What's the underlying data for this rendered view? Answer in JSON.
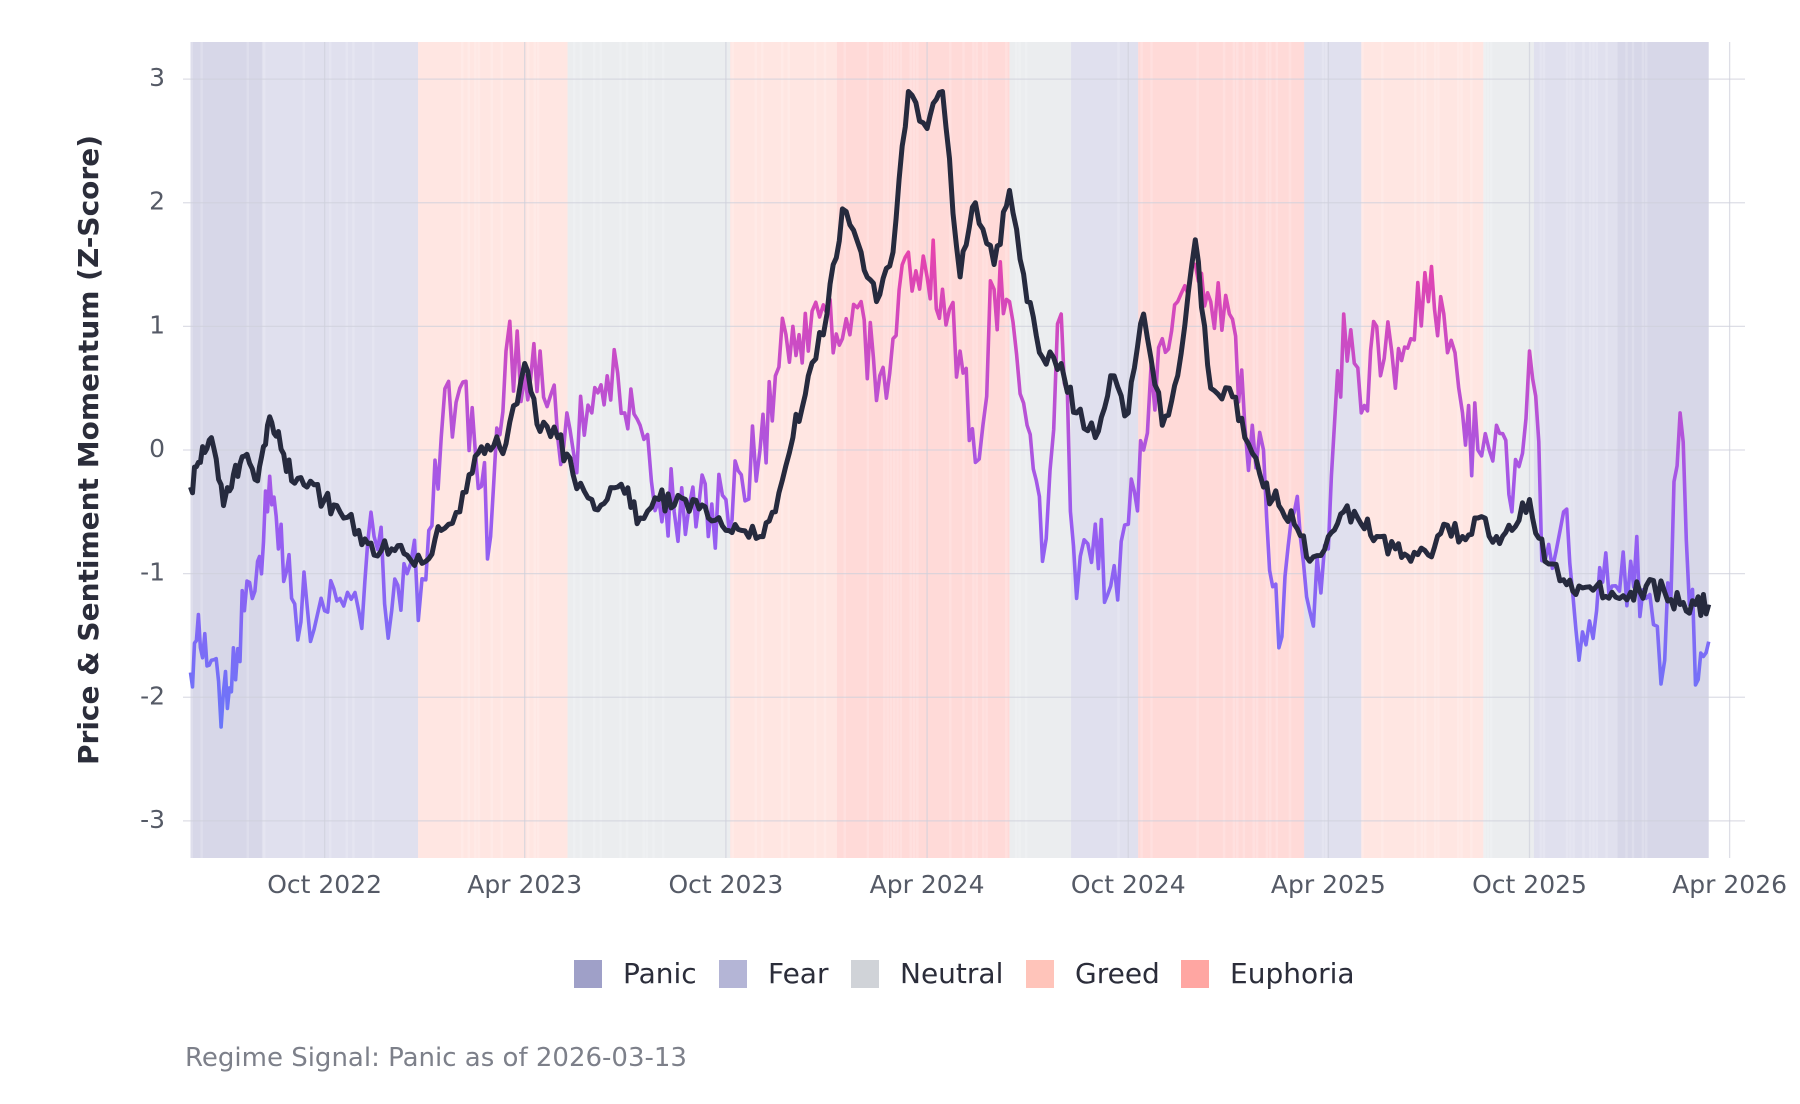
{
  "chart_data": {
    "type": "line",
    "ylabel": "Price & Sentiment Momentum (Z-Score)",
    "xlabel": "",
    "title": "",
    "ylim": [
      -3.3,
      3.3
    ],
    "xlim": [
      "2022-05-27",
      "2026-04-15"
    ],
    "data_range": [
      "2022-06-01",
      "2026-03-13"
    ],
    "yticks": [
      -3,
      -2,
      -1,
      0,
      1,
      2,
      3
    ],
    "ytick_labels": [
      "-3",
      "-2",
      "-1",
      "0",
      "1",
      "2",
      "3"
    ],
    "xticks": [
      "2022-10-01",
      "2023-04-01",
      "2023-10-01",
      "2024-04-01",
      "2024-10-01",
      "2025-04-01",
      "2025-10-01",
      "2026-04-01"
    ],
    "xtick_labels": [
      "Oct 2022",
      "Apr 2023",
      "Oct 2023",
      "Apr 2024",
      "Oct 2024",
      "Apr 2025",
      "Oct 2025",
      "Apr 2026"
    ],
    "grid": true,
    "legend_position": "bottom",
    "regimes": [
      {
        "name": "Panic",
        "color": "#9fa0c8"
      },
      {
        "name": "Fear",
        "color": "#b4b5d6"
      },
      {
        "name": "Neutral",
        "color": "#d0d3d8"
      },
      {
        "name": "Greed",
        "color": "#ffc4ba"
      },
      {
        "name": "Euphoria",
        "color": "#ffa6a2"
      }
    ],
    "regime_periods": [
      {
        "start": "2022-06-01",
        "end": "2022-08-05",
        "regime": "Panic"
      },
      {
        "start": "2022-08-05",
        "end": "2022-09-10",
        "regime": "Fear"
      },
      {
        "start": "2022-09-10",
        "end": "2022-12-25",
        "regime": "Fear"
      },
      {
        "start": "2022-12-25",
        "end": "2023-02-20",
        "regime": "Greed"
      },
      {
        "start": "2023-02-20",
        "end": "2023-05-10",
        "regime": "Greed"
      },
      {
        "start": "2023-05-10",
        "end": "2023-10-05",
        "regime": "Neutral"
      },
      {
        "start": "2023-10-05",
        "end": "2024-01-10",
        "regime": "Greed"
      },
      {
        "start": "2024-01-10",
        "end": "2024-06-15",
        "regime": "Euphoria"
      },
      {
        "start": "2024-06-15",
        "end": "2024-08-10",
        "regime": "Neutral"
      },
      {
        "start": "2024-08-10",
        "end": "2024-10-10",
        "regime": "Fear"
      },
      {
        "start": "2024-10-10",
        "end": "2025-03-10",
        "regime": "Euphoria"
      },
      {
        "start": "2025-03-10",
        "end": "2025-05-01",
        "regime": "Fear"
      },
      {
        "start": "2025-05-01",
        "end": "2025-08-20",
        "regime": "Greed"
      },
      {
        "start": "2025-08-20",
        "end": "2025-10-05",
        "regime": "Neutral"
      },
      {
        "start": "2025-10-05",
        "end": "2025-12-20",
        "regime": "Fear"
      },
      {
        "start": "2025-12-20",
        "end": "2026-03-13",
        "regime": "Panic"
      }
    ],
    "series": [
      {
        "role": "price",
        "color": "#262a3e",
        "x": [
          "2022-06-01",
          "2022-06-10",
          "2022-06-20",
          "2022-07-01",
          "2022-07-10",
          "2022-07-20",
          "2022-08-01",
          "2022-08-10",
          "2022-08-20",
          "2022-09-01",
          "2022-09-15",
          "2022-10-01",
          "2022-10-15",
          "2022-11-01",
          "2022-11-15",
          "2022-12-01",
          "2022-12-15",
          "2023-01-01",
          "2023-01-15",
          "2023-02-01",
          "2023-02-15",
          "2023-03-01",
          "2023-03-15",
          "2023-04-01",
          "2023-04-15",
          "2023-05-01",
          "2023-05-15",
          "2023-06-01",
          "2023-06-15",
          "2023-07-01",
          "2023-07-15",
          "2023-08-01",
          "2023-08-15",
          "2023-09-01",
          "2023-09-15",
          "2023-10-01",
          "2023-10-15",
          "2023-11-01",
          "2023-11-15",
          "2023-12-01",
          "2023-12-15",
          "2024-01-01",
          "2024-01-15",
          "2024-02-01",
          "2024-02-15",
          "2024-03-01",
          "2024-03-15",
          "2024-04-01",
          "2024-04-15",
          "2024-05-01",
          "2024-05-15",
          "2024-06-01",
          "2024-06-15",
          "2024-07-01",
          "2024-07-15",
          "2024-08-01",
          "2024-08-15",
          "2024-09-01",
          "2024-09-15",
          "2024-10-01",
          "2024-10-15",
          "2024-11-01",
          "2024-11-15",
          "2024-12-01",
          "2024-12-15",
          "2025-01-01",
          "2025-01-15",
          "2025-02-01",
          "2025-02-15",
          "2025-03-01",
          "2025-03-15",
          "2025-04-01",
          "2025-04-15",
          "2025-05-01",
          "2025-05-15",
          "2025-06-01",
          "2025-06-15",
          "2025-07-01",
          "2025-07-15",
          "2025-08-01",
          "2025-08-15",
          "2025-09-01",
          "2025-09-15",
          "2025-10-01",
          "2025-10-15",
          "2025-11-01",
          "2025-11-15",
          "2025-12-01",
          "2025-12-15",
          "2026-01-01",
          "2026-01-15",
          "2026-02-01",
          "2026-02-15",
          "2026-03-01",
          "2026-03-13"
        ],
        "values": [
          -0.3,
          -0.1,
          0.1,
          -0.45,
          -0.2,
          -0.05,
          -0.25,
          0.2,
          0.15,
          -0.25,
          -0.3,
          -0.4,
          -0.5,
          -0.65,
          -0.85,
          -0.8,
          -0.85,
          -0.9,
          -0.65,
          -0.5,
          -0.05,
          0.0,
          0.05,
          0.7,
          0.15,
          0.1,
          -0.2,
          -0.4,
          -0.4,
          -0.35,
          -0.55,
          -0.4,
          -0.45,
          -0.4,
          -0.55,
          -0.65,
          -0.65,
          -0.7,
          -0.5,
          0.1,
          0.6,
          1.1,
          1.95,
          1.6,
          1.2,
          1.6,
          2.9,
          2.6,
          2.9,
          1.4,
          2.0,
          1.5,
          2.1,
          1.2,
          0.75,
          0.7,
          0.3,
          0.1,
          0.6,
          0.3,
          1.1,
          0.2,
          0.6,
          1.7,
          0.5,
          0.5,
          0.1,
          -0.3,
          -0.45,
          -0.6,
          -0.9,
          -0.7,
          -0.5,
          -0.6,
          -0.7,
          -0.8,
          -0.9,
          -0.85,
          -0.6,
          -0.7,
          -0.55,
          -0.7,
          -0.65,
          -0.4,
          -0.9,
          -1.05,
          -1.1,
          -1.1,
          -1.15,
          -1.15,
          -1.1,
          -1.15,
          -1.25,
          -1.25,
          -1.25
        ]
      },
      {
        "role": "sentiment",
        "colors": [
          "#4e86ff",
          "#9a5bf0",
          "#f43fa0"
        ],
        "x": [
          "2022-06-01",
          "2022-06-10",
          "2022-06-20",
          "2022-07-01",
          "2022-07-10",
          "2022-07-20",
          "2022-08-01",
          "2022-08-10",
          "2022-08-20",
          "2022-09-01",
          "2022-09-15",
          "2022-10-01",
          "2022-10-15",
          "2022-11-01",
          "2022-11-15",
          "2022-12-01",
          "2022-12-15",
          "2023-01-01",
          "2023-01-15",
          "2023-02-01",
          "2023-02-15",
          "2023-03-01",
          "2023-03-15",
          "2023-04-01",
          "2023-04-15",
          "2023-05-01",
          "2023-05-15",
          "2023-06-01",
          "2023-06-15",
          "2023-07-01",
          "2023-07-15",
          "2023-08-01",
          "2023-08-15",
          "2023-09-01",
          "2023-09-15",
          "2023-10-01",
          "2023-10-15",
          "2023-11-01",
          "2023-11-15",
          "2023-12-01",
          "2023-12-15",
          "2024-01-01",
          "2024-01-15",
          "2024-02-01",
          "2024-02-15",
          "2024-03-01",
          "2024-03-15",
          "2024-04-01",
          "2024-04-15",
          "2024-05-01",
          "2024-05-15",
          "2024-06-01",
          "2024-06-15",
          "2024-07-01",
          "2024-07-15",
          "2024-08-01",
          "2024-08-15",
          "2024-09-01",
          "2024-09-15",
          "2024-10-01",
          "2024-10-15",
          "2024-11-01",
          "2024-11-15",
          "2024-12-01",
          "2024-12-15",
          "2025-01-01",
          "2025-01-15",
          "2025-02-01",
          "2025-02-15",
          "2025-03-01",
          "2025-03-15",
          "2025-04-01",
          "2025-04-15",
          "2025-05-01",
          "2025-05-15",
          "2025-06-01",
          "2025-06-15",
          "2025-07-01",
          "2025-07-15",
          "2025-08-01",
          "2025-08-15",
          "2025-09-01",
          "2025-09-15",
          "2025-10-01",
          "2025-10-15",
          "2025-11-01",
          "2025-11-15",
          "2025-12-01",
          "2025-12-15",
          "2026-01-01",
          "2026-01-15",
          "2026-02-01",
          "2026-02-15",
          "2026-03-01",
          "2026-03-13"
        ],
        "values": [
          -1.8,
          -1.6,
          -1.7,
          -1.95,
          -1.6,
          -1.3,
          -0.9,
          -0.5,
          -0.8,
          -1.2,
          -1.25,
          -1.3,
          -1.2,
          -1.3,
          -0.7,
          -1.3,
          -1.0,
          -1.05,
          0.1,
          0.5,
          0.0,
          -0.7,
          0.8,
          0.6,
          0.8,
          0.1,
          0.0,
          0.3,
          0.6,
          0.3,
          0.2,
          -0.4,
          -0.5,
          -0.3,
          -0.7,
          -0.4,
          -0.2,
          0.0,
          0.6,
          1.0,
          0.8,
          1.1,
          0.9,
          1.2,
          0.4,
          0.9,
          1.6,
          1.4,
          1.3,
          0.8,
          -0.1,
          1.3,
          1.2,
          0.2,
          -0.9,
          1.1,
          -1.2,
          -0.6,
          -1.1,
          -0.6,
          0.0,
          0.9,
          1.2,
          1.5,
          1.2,
          1.1,
          0.2,
          0.0,
          -1.6,
          -0.5,
          -1.3,
          -0.8,
          1.1,
          0.3,
          1.0,
          0.5,
          0.9,
          1.2,
          1.1,
          0.3,
          0.0,
          0.2,
          -0.5,
          0.8,
          -0.9,
          -0.5,
          -1.7,
          -1.3,
          -1.1,
          -0.9,
          -1.2,
          -1.7,
          0.3,
          -1.9,
          -1.55
        ]
      }
    ]
  },
  "caption": {
    "text": "Regime Signal: Panic as of 2026-03-13"
  }
}
